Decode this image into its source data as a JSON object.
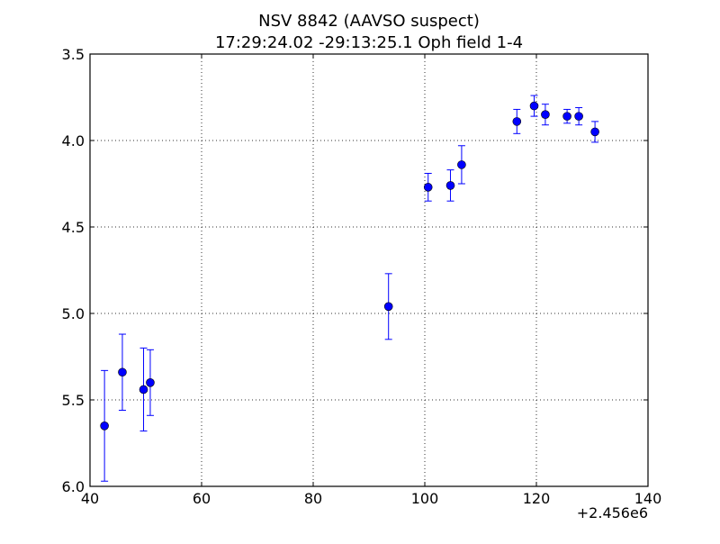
{
  "chart_data": {
    "type": "scatter",
    "title": "NSV 8842  (AAVSO suspect)",
    "subtitle": "17:29:24.02 -29:13:25.1 Oph field 1-4",
    "xlabel": "",
    "ylabel": "",
    "x_offset_label": "+2.456e6",
    "xlim": [
      40,
      140
    ],
    "ylim": [
      6.0,
      3.5
    ],
    "y_inverted": true,
    "grid": true,
    "x_ticks": [
      40,
      60,
      80,
      100,
      120,
      140
    ],
    "x_tick_labels": [
      "40",
      "60",
      "80",
      "100",
      "120",
      "140"
    ],
    "y_ticks": [
      3.5,
      4.0,
      4.5,
      5.0,
      5.5,
      6.0
    ],
    "y_tick_labels": [
      "3.5",
      "4.0",
      "4.5",
      "5.0",
      "5.5",
      "6.0"
    ],
    "marker_color": "#0000ff",
    "series": [
      {
        "points": [
          {
            "x": 42.6,
            "y": 5.65,
            "err": 0.32
          },
          {
            "x": 45.8,
            "y": 5.34,
            "err": 0.22
          },
          {
            "x": 49.6,
            "y": 5.44,
            "err": 0.24
          },
          {
            "x": 50.8,
            "y": 5.4,
            "err": 0.19
          },
          {
            "x": 93.5,
            "y": 4.96,
            "err": 0.19
          },
          {
            "x": 100.6,
            "y": 4.27,
            "err": 0.08
          },
          {
            "x": 104.6,
            "y": 4.26,
            "err": 0.09
          },
          {
            "x": 106.6,
            "y": 4.14,
            "err": 0.11
          },
          {
            "x": 116.5,
            "y": 3.89,
            "err": 0.07
          },
          {
            "x": 119.6,
            "y": 3.8,
            "err": 0.06
          },
          {
            "x": 121.6,
            "y": 3.85,
            "err": 0.06
          },
          {
            "x": 125.5,
            "y": 3.86,
            "err": 0.04
          },
          {
            "x": 127.6,
            "y": 3.86,
            "err": 0.05
          },
          {
            "x": 130.5,
            "y": 3.95,
            "err": 0.06
          }
        ]
      }
    ]
  }
}
